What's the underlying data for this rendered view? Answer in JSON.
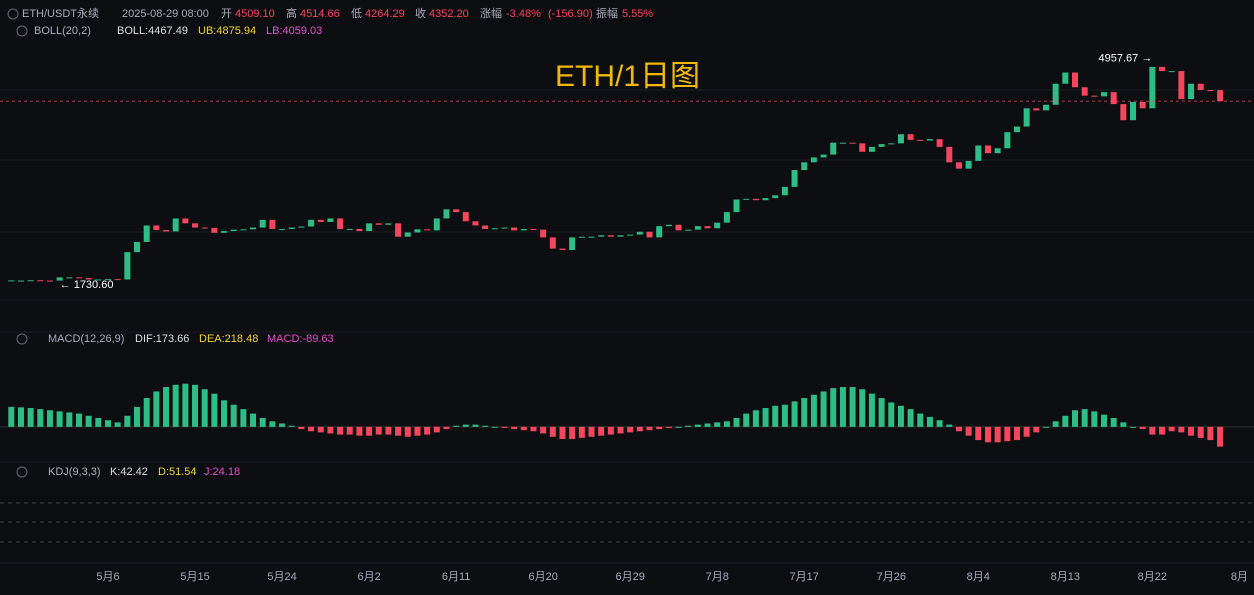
{
  "header": {
    "symbol": "ETH/USDT永续",
    "time": "2025-08-29 08:00",
    "open_label": "开",
    "open": {
      "value": 4509.1,
      "label": "4509.10"
    },
    "high_label": "高",
    "high": {
      "value": 4514.66,
      "label": "4514.66"
    },
    "low_label": "低",
    "low": {
      "value": 4264.29,
      "label": "4264.29"
    },
    "close_label": "收",
    "close": {
      "value": 4352.2,
      "label": "4352.20"
    },
    "change_label": "涨幅",
    "change_pct": {
      "value": -3.48,
      "label": "-3.48%"
    },
    "change_abs": {
      "value": -156.9,
      "label": "(-156.90)"
    },
    "amp_label": "振幅",
    "amp": {
      "value": 5.55,
      "label": "5.55%"
    }
  },
  "boll": {
    "name": "BOLL(20,2)",
    "mid": {
      "value": 4467.49,
      "label": "BOLL:4467.49"
    },
    "ub": {
      "value": 4875.94,
      "label": "UB:4875.94"
    },
    "lb": {
      "value": 4059.03,
      "label": "LB:4059.03"
    }
  },
  "macd": {
    "name": "MACD(12,26,9)",
    "dif": {
      "value": 173.66,
      "label": "DIF:173.66"
    },
    "dea": {
      "value": 218.48,
      "label": "DEA:218.48"
    },
    "macd": {
      "value": -89.63,
      "label": "MACD:-89.63"
    }
  },
  "kdj": {
    "name": "KDJ(9,3,3)",
    "k": {
      "value": 42.42,
      "label": "K:42.42"
    },
    "d": {
      "value": 51.54,
      "label": "D:51.54"
    },
    "j": {
      "value": 24.18,
      "label": "J:24.18"
    }
  },
  "watermark": "ETH/1日图",
  "chart_data": {
    "type": "candlestick",
    "ylim": [
      1090,
      5480
    ],
    "up_color": "#2ebd85",
    "down_color": "#f6465d",
    "close": [
      1790,
      1795,
      1799,
      1795,
      1794,
      1840,
      1840,
      1830,
      1810,
      1810,
      1815,
      1810,
      2200,
      2345,
      2580,
      2515,
      2495,
      2680,
      2610,
      2550,
      2545,
      2475,
      2500,
      2520,
      2525,
      2550,
      2660,
      2530,
      2530,
      2550,
      2565,
      2660,
      2630,
      2680,
      2530,
      2530,
      2500,
      2610,
      2590,
      2610,
      2420,
      2480,
      2525,
      2510,
      2680,
      2810,
      2770,
      2640,
      2580,
      2530,
      2540,
      2550,
      2510,
      2530,
      2520,
      2410,
      2250,
      2230,
      2410,
      2420,
      2420,
      2440,
      2420,
      2440,
      2450,
      2490,
      2410,
      2570,
      2590,
      2510,
      2520,
      2570,
      2540,
      2620,
      2770,
      2950,
      2960,
      2940,
      2970,
      3010,
      3130,
      3370,
      3480,
      3550,
      3590,
      3760,
      3760,
      3750,
      3630,
      3700,
      3740,
      3750,
      3880,
      3800,
      3790,
      3810,
      3700,
      3480,
      3390,
      3500,
      3720,
      3610,
      3680,
      3910,
      3990,
      4250,
      4220,
      4300,
      4600,
      4760,
      4550,
      4430,
      4420,
      4480,
      4310,
      4080,
      4340,
      4250,
      4840,
      4780,
      4780,
      4380,
      4600,
      4510,
      4509.1,
      4352.2
    ],
    "annotations": [
      {
        "value": 4957.67,
        "label": "4957.67 →",
        "index": 118
      },
      {
        "value": 1730.6,
        "label": "← 1730.60",
        "index": 5
      }
    ],
    "macd_ylim": [
      -150,
      370
    ],
    "macd_hist": [
      90,
      88,
      85,
      80,
      75,
      70,
      65,
      60,
      50,
      40,
      30,
      20,
      50,
      90,
      130,
      160,
      180,
      190,
      195,
      190,
      170,
      150,
      120,
      100,
      80,
      60,
      40,
      25,
      15,
      5,
      -10,
      -20,
      -25,
      -30,
      -35,
      -35,
      -40,
      -40,
      -35,
      -35,
      -40,
      -45,
      -40,
      -35,
      -25,
      -10,
      5,
      10,
      10,
      5,
      0,
      -5,
      -10,
      -15,
      -20,
      -30,
      -45,
      -55,
      -55,
      -50,
      -45,
      -40,
      -35,
      -30,
      -25,
      -20,
      -15,
      -10,
      -5,
      0,
      5,
      10,
      15,
      20,
      25,
      40,
      60,
      75,
      85,
      95,
      100,
      115,
      130,
      145,
      160,
      175,
      180,
      180,
      170,
      150,
      130,
      110,
      95,
      80,
      60,
      45,
      30,
      10,
      -20,
      -40,
      -60,
      -70,
      -70,
      -65,
      -60,
      -45,
      -25,
      0,
      25,
      50,
      75,
      80,
      70,
      55,
      40,
      20,
      0,
      -10,
      -35,
      -35,
      -20,
      -25,
      -40,
      -50,
      -60,
      -89.63
    ],
    "xticks": [
      {
        "value": 10,
        "label": "5月6"
      },
      {
        "value": 19,
        "label": "5月15"
      },
      {
        "value": 28,
        "label": "5月24"
      },
      {
        "value": 37,
        "label": "6月2"
      },
      {
        "value": 46,
        "label": "6月11"
      },
      {
        "value": 55,
        "label": "6月20"
      },
      {
        "value": 64,
        "label": "6月29"
      },
      {
        "value": 73,
        "label": "7月8"
      },
      {
        "value": 82,
        "label": "7月17"
      },
      {
        "value": 91,
        "label": "7月26"
      },
      {
        "value": 100,
        "label": "8月4"
      },
      {
        "value": 109,
        "label": "8月13"
      },
      {
        "value": 118,
        "label": "8月22"
      },
      {
        "value": 127,
        "label": "8月"
      }
    ]
  }
}
